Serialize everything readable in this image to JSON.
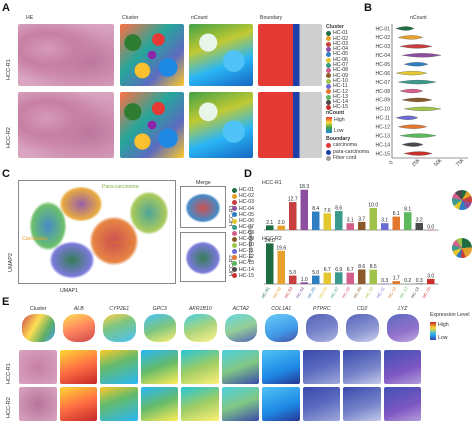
{
  "panels": {
    "A": "A",
    "B": "B",
    "C": "C",
    "D": "D",
    "E": "E"
  },
  "panelA": {
    "col_headers": [
      "HE",
      "Cluster",
      "nCount",
      "Boundary"
    ],
    "rows": [
      "HCC-R1",
      "HCC-R2"
    ]
  },
  "legendA": {
    "cluster_title": "Cluster",
    "clusters": [
      "HC-01",
      "HC-02",
      "HC-03",
      "HC-04",
      "HC-05",
      "HC-06",
      "HC-07",
      "HC-08",
      "HC-09",
      "HC-10",
      "HC-11",
      "HC-12",
      "HC-13",
      "HC-14",
      "HC-15"
    ],
    "cluster_colors": [
      "#1f6e43",
      "#e6a12a",
      "#c83d3d",
      "#8c4fa0",
      "#2f7ec1",
      "#e3c72f",
      "#3a9a8c",
      "#d35f8c",
      "#8a5a2c",
      "#a0c44a",
      "#6b6bd6",
      "#e3772e",
      "#5cb85c",
      "#4a4a4a",
      "#c9302c"
    ],
    "ncount_title": "nCount",
    "ncount_high": "High",
    "ncount_low": "Low",
    "boundary_title": "Boundary",
    "boundary_items": [
      "carcinoma",
      "para-carcinoma",
      "Fiber cord"
    ],
    "boundary_colors": [
      "#e53935",
      "#1e3fa8",
      "#9e9e9e"
    ]
  },
  "panelB": {
    "title": "nCount",
    "xticks": [
      "0",
      "25k",
      "50k",
      "75k"
    ],
    "clusters": [
      "HC-01",
      "HC-02",
      "HC-03",
      "HC-04",
      "HC-05",
      "HC-06",
      "HC-07",
      "HC-08",
      "HC-09",
      "HC-10",
      "HC-11",
      "HC-12",
      "HC-13",
      "HC-14",
      "HC-15"
    ]
  },
  "panelC": {
    "labels": [
      "Para-carcinoma",
      "Carcinoma",
      "Fiber cord"
    ],
    "merge": "Merge",
    "rows": [
      "HCC-R1",
      "HCC-R2"
    ],
    "xlabel": "UMAP1",
    "ylabel": "UMAP2",
    "legend": [
      "HC-01",
      "HC-02",
      "HC-03",
      "HC-04",
      "HC-05",
      "HC-06",
      "HC-07",
      "HC-08",
      "HC-09",
      "HC-10",
      "HC-11",
      "HC-12",
      "HC-13",
      "HC-14",
      "HC-15"
    ]
  },
  "panelD": {
    "ylabel": "Percentage(%)",
    "r1_label": "HCC-R1",
    "r2_label": "HCC-R2",
    "xticks": [
      "HC-01",
      "HC-02",
      "HC-03",
      "HC-04",
      "HC-05",
      "HC-06",
      "HC-07",
      "HC-08",
      "HC-09",
      "HC-10",
      "HC-11",
      "HC-12",
      "HC-13",
      "HC-14",
      "HC-15"
    ]
  },
  "panelE": {
    "genes": [
      "Cluster",
      "ALB",
      "CYP2E1",
      "GPC3",
      "AKR1B10",
      "ACTA2",
      "COL1A1",
      "PTPRC",
      "CD2",
      "LYZ"
    ],
    "rows": [
      "HCC-R1",
      "HCC-R2"
    ],
    "expr_title": "Expression Level",
    "expr_high": "High",
    "expr_low": "Low"
  },
  "chart_data": [
    {
      "type": "bar",
      "title": "HCC-R1",
      "categories": [
        "HC-01",
        "HC-02",
        "HC-03",
        "HC-04",
        "HC-05",
        "HC-06",
        "HC-07",
        "HC-08",
        "HC-09",
        "HC-10",
        "HC-11",
        "HC-12",
        "HC-13",
        "HC-14",
        "HC-15"
      ],
      "values": [
        2.1,
        2.0,
        12.7,
        18.3,
        8.4,
        7.6,
        8.6,
        3.1,
        3.7,
        10.0,
        3.1,
        6.1,
        8.1,
        3.2,
        0.0
      ],
      "ylabel": "Percentage(%)"
    },
    {
      "type": "bar",
      "title": "HCC-R2",
      "categories": [
        "HC-01",
        "HC-02",
        "HC-03",
        "HC-04",
        "HC-05",
        "HC-06",
        "HC-07",
        "HC-08",
        "HC-09",
        "HC-10",
        "HC-11",
        "HC-12",
        "HC-13",
        "HC-14",
        "HC-15"
      ],
      "values": [
        24.0,
        19.6,
        5.0,
        1.0,
        5.0,
        6.7,
        6.9,
        6.7,
        8.6,
        8.5,
        0.3,
        1.7,
        0.2,
        0.3,
        3.0
      ],
      "ylabel": "Percentage(%)"
    }
  ]
}
